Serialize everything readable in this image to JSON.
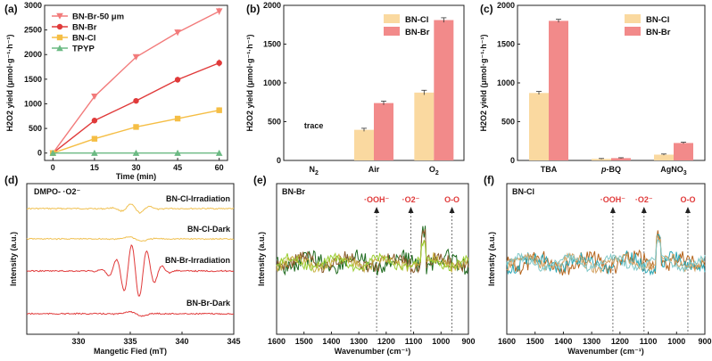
{
  "chart_data": [
    {
      "id": "a",
      "panel_label": "(a)",
      "type": "line",
      "xlabel": "Time (min)",
      "ylabel": "H2O2 yield (μmol·g⁻¹·h⁻¹)",
      "x": [
        0,
        15,
        30,
        45,
        60
      ],
      "xlim": [
        -3,
        63
      ],
      "xticks": [
        0,
        15,
        30,
        45,
        60
      ],
      "ylim": [
        -150,
        3000
      ],
      "yticks": [
        0,
        500,
        1000,
        1500,
        2000,
        2500,
        3000
      ],
      "series": [
        {
          "name": "BN-Br-50 μm",
          "marker": "triangle-down",
          "color": "#f27b7b",
          "values": [
            0,
            1150,
            1950,
            2450,
            2880
          ],
          "err": [
            0,
            30,
            40,
            60,
            70
          ]
        },
        {
          "name": "BN-Br",
          "marker": "circle",
          "color": "#e03a3a",
          "values": [
            0,
            660,
            1060,
            1490,
            1830
          ],
          "err": [
            0,
            30,
            35,
            60,
            70
          ]
        },
        {
          "name": "BN-Cl",
          "marker": "square",
          "color": "#f5be45",
          "values": [
            0,
            290,
            530,
            700,
            870
          ],
          "err": [
            0,
            25,
            30,
            50,
            60
          ]
        },
        {
          "name": "TPYP",
          "marker": "triangle-up",
          "color": "#6cba84",
          "values": [
            0,
            0,
            0,
            0,
            0
          ],
          "err": [
            0,
            0,
            0,
            0,
            0
          ]
        }
      ]
    },
    {
      "id": "b",
      "panel_label": "(b)",
      "type": "bar",
      "xlabel": "",
      "ylabel": "H2O2 yield (μmol·g⁻¹·h⁻¹)",
      "categories": [
        "N2",
        "Air",
        "O2"
      ],
      "ylim": [
        0,
        2000
      ],
      "yticks": [
        0,
        500,
        1000,
        1500,
        2000
      ],
      "annotation": "trace",
      "series": [
        {
          "name": "BN-Cl",
          "color": "#fad9a0",
          "values": [
            0,
            395,
            875
          ],
          "err": [
            0,
            20,
            30
          ]
        },
        {
          "name": "BN-Br",
          "color": "#f28a8a",
          "values": [
            0,
            740,
            1810
          ],
          "err": [
            0,
            25,
            30
          ]
        }
      ]
    },
    {
      "id": "c",
      "panel_label": "(c)",
      "type": "bar",
      "xlabel": "",
      "ylabel": "H2O2 yield (μmol·g⁻¹·h⁻¹)",
      "categories": [
        "TBA",
        "p-BQ",
        "AgNO3"
      ],
      "ylim": [
        0,
        2000
      ],
      "yticks": [
        0,
        500,
        1000,
        1500,
        2000
      ],
      "series": [
        {
          "name": "BN-Cl",
          "color": "#fad9a0",
          "values": [
            870,
            20,
            75
          ],
          "err": [
            20,
            5,
            8
          ]
        },
        {
          "name": "BN-Br",
          "color": "#f28a8a",
          "values": [
            1800,
            30,
            225
          ],
          "err": [
            20,
            5,
            10
          ]
        }
      ]
    },
    {
      "id": "d",
      "panel_label": "(d)",
      "type": "line",
      "subtitle": "DMPO- ·O2⁻",
      "xlabel": "Mangetic Fied (mT)",
      "ylabel": "Intensity (a.u.)",
      "xlim": [
        325,
        345
      ],
      "xticks": [
        330,
        335,
        340,
        345
      ],
      "series": [
        {
          "name": "BN-Cl-Irradiation",
          "color": "#f0c050"
        },
        {
          "name": "BN-Cl-Dark",
          "color": "#f0c050"
        },
        {
          "name": "BN-Br-Irradiation",
          "color": "#e03a3a"
        },
        {
          "name": "BN-Br-Dark",
          "color": "#e03a3a"
        }
      ]
    },
    {
      "id": "e",
      "panel_label": "(e)",
      "type": "line",
      "subtitle": "BN-Br",
      "xlabel": "Wavenumber (cm⁻¹)",
      "ylabel": "Intensity (a.u.)",
      "xlim": [
        1600,
        900
      ],
      "xticks": [
        1600,
        1500,
        1400,
        1300,
        1200,
        1100,
        1000,
        900
      ],
      "markers": [
        {
          "label": "·OOH⁻",
          "x": 1235
        },
        {
          "label": "·O2⁻",
          "x": 1110
        },
        {
          "label": "O-O",
          "x": 960
        }
      ],
      "series": [
        {
          "name": "spectrum-1",
          "color": "#1f6b1f"
        },
        {
          "name": "spectrum-2",
          "color": "#8b5a2b"
        },
        {
          "name": "spectrum-3",
          "color": "#c8b040"
        },
        {
          "name": "spectrum-4",
          "color": "#9acd32"
        }
      ]
    },
    {
      "id": "f",
      "panel_label": "(f)",
      "type": "line",
      "subtitle": "BN-Cl",
      "xlabel": "Wavenumber (cm⁻¹)",
      "ylabel": "Intensity (a.u.)",
      "xlim": [
        1600,
        900
      ],
      "xticks": [
        1600,
        1500,
        1400,
        1300,
        1200,
        1100,
        1000,
        900
      ],
      "markers": [
        {
          "label": "·OOH⁻",
          "x": 1225
        },
        {
          "label": "·O2⁻",
          "x": 1115
        },
        {
          "label": "O-O",
          "x": 960
        }
      ],
      "series": [
        {
          "name": "spectrum-1",
          "color": "#b5651d"
        },
        {
          "name": "spectrum-2",
          "color": "#2aa7b5"
        },
        {
          "name": "spectrum-3",
          "color": "#d2a060"
        },
        {
          "name": "spectrum-4",
          "color": "#7fc8c8"
        }
      ]
    }
  ]
}
